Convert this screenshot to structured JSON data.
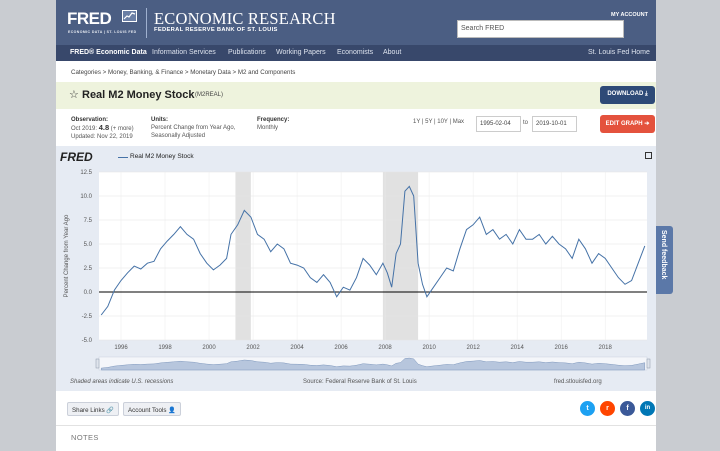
{
  "header": {
    "logo_text": "FRED",
    "logo_sub": "ECONOMIC DATA | ST. LOUIS FED",
    "title": "ECONOMIC RESEARCH",
    "subtitle": "FEDERAL RESERVE BANK OF ST. LOUIS",
    "my_account": "MY ACCOUNT",
    "search_placeholder": "Search FRED"
  },
  "nav": {
    "items": [
      "FRED® Economic Data",
      "Information Services",
      "Publications",
      "Working Papers",
      "Economists",
      "About"
    ],
    "right": "St. Louis Fed Home"
  },
  "breadcrumb": "Categories > Money, Banking, & Finance > Monetary Data > M2 and Components",
  "series": {
    "title": "Real M2 Money Stock",
    "code": "(M2REAL)",
    "download_label": "DOWNLOAD",
    "edit_label": "EDIT GRAPH"
  },
  "meta": {
    "obs_label": "Observation:",
    "obs_date": "Oct 2019:",
    "obs_value": "4.8",
    "obs_more": "(+ more)",
    "updated": "Updated: Nov 22, 2019",
    "units_label": "Units:",
    "units_value": "Percent Change from Year Ago, Seasonally Adjusted",
    "freq_label": "Frequency:",
    "freq_value": "Monthly",
    "range_options": "1Y | 5Y | 10Y | Max",
    "date_from": "1995-02-04",
    "date_to": "2019-10-01",
    "to": "to"
  },
  "graph": {
    "brand": "FRED",
    "legend": "Real M2 Money Stock",
    "shaded_note": "Shaded areas indicate U.S. recessions",
    "source": "Source: Federal Reserve Bank of St. Louis",
    "url": "fred.stlouisfed.org"
  },
  "chart_data": {
    "type": "line",
    "title": "",
    "xlabel": "",
    "ylabel": "Percent Change from Year Ago",
    "ylim": [
      -5,
      12.5
    ],
    "yticks": [
      "12.5",
      "10.0",
      "7.5",
      "5.0",
      "2.5",
      "0.0",
      "-2.5",
      "-5.0"
    ],
    "xticks": [
      "1996",
      "1998",
      "2000",
      "2002",
      "2004",
      "2006",
      "2008",
      "2010",
      "2012",
      "2014",
      "2016",
      "2018"
    ],
    "recessions": [
      [
        2001.2,
        2001.9
      ],
      [
        2007.9,
        2009.5
      ]
    ],
    "series": [
      {
        "name": "Real M2 Money Stock",
        "color": "#4572a7",
        "x": [
          1995.1,
          1995.4,
          1995.7,
          1996.0,
          1996.3,
          1996.6,
          1996.9,
          1997.2,
          1997.5,
          1997.8,
          1998.1,
          1998.4,
          1998.7,
          1999.0,
          1999.3,
          1999.6,
          1999.9,
          2000.2,
          2000.5,
          2000.8,
          2001.0,
          2001.3,
          2001.6,
          2001.9,
          2002.2,
          2002.5,
          2002.8,
          2003.1,
          2003.4,
          2003.7,
          2004.0,
          2004.3,
          2004.6,
          2004.9,
          2005.2,
          2005.5,
          2005.8,
          2006.1,
          2006.4,
          2006.7,
          2007.0,
          2007.3,
          2007.6,
          2007.9,
          2008.1,
          2008.3,
          2008.5,
          2008.7,
          2008.9,
          2009.1,
          2009.3,
          2009.5,
          2009.7,
          2009.9,
          2010.2,
          2010.5,
          2010.8,
          2011.1,
          2011.4,
          2011.7,
          2012.0,
          2012.3,
          2012.6,
          2012.9,
          2013.2,
          2013.5,
          2013.8,
          2014.1,
          2014.4,
          2014.7,
          2015.0,
          2015.3,
          2015.6,
          2015.9,
          2016.2,
          2016.5,
          2016.8,
          2017.1,
          2017.4,
          2017.7,
          2018.0,
          2018.3,
          2018.6,
          2018.9,
          2019.2,
          2019.5,
          2019.8
        ],
        "values": [
          -2.4,
          -1.5,
          0.2,
          1.2,
          2.0,
          2.7,
          2.4,
          3.0,
          3.2,
          4.5,
          5.3,
          6.0,
          6.8,
          6.0,
          5.5,
          4.0,
          3.0,
          2.3,
          2.8,
          3.5,
          6.0,
          7.0,
          8.5,
          7.8,
          6.0,
          5.5,
          4.2,
          5.0,
          4.5,
          3.0,
          2.8,
          2.5,
          1.5,
          1.0,
          1.8,
          1.0,
          -0.5,
          0.5,
          0.2,
          1.5,
          3.5,
          2.8,
          1.8,
          3.0,
          2.0,
          0.5,
          4.0,
          5.0,
          10.5,
          11.0,
          10.0,
          3.0,
          0.8,
          -0.5,
          0.5,
          1.5,
          2.5,
          2.2,
          4.5,
          6.5,
          7.0,
          7.8,
          6.0,
          6.5,
          5.5,
          6.0,
          5.0,
          6.5,
          5.5,
          5.5,
          6.0,
          5.0,
          5.8,
          5.0,
          4.5,
          3.5,
          5.5,
          4.5,
          3.0,
          4.0,
          3.5,
          2.5,
          1.5,
          0.8,
          1.2,
          3.0,
          4.8
        ]
      }
    ]
  },
  "tools": {
    "share": "Share Links",
    "account": "Account Tools"
  },
  "social": {
    "twitter": "t",
    "reddit": "r",
    "facebook": "f",
    "linkedin": "in"
  },
  "notes_heading": "NOTES",
  "feedback": "Send feedback"
}
